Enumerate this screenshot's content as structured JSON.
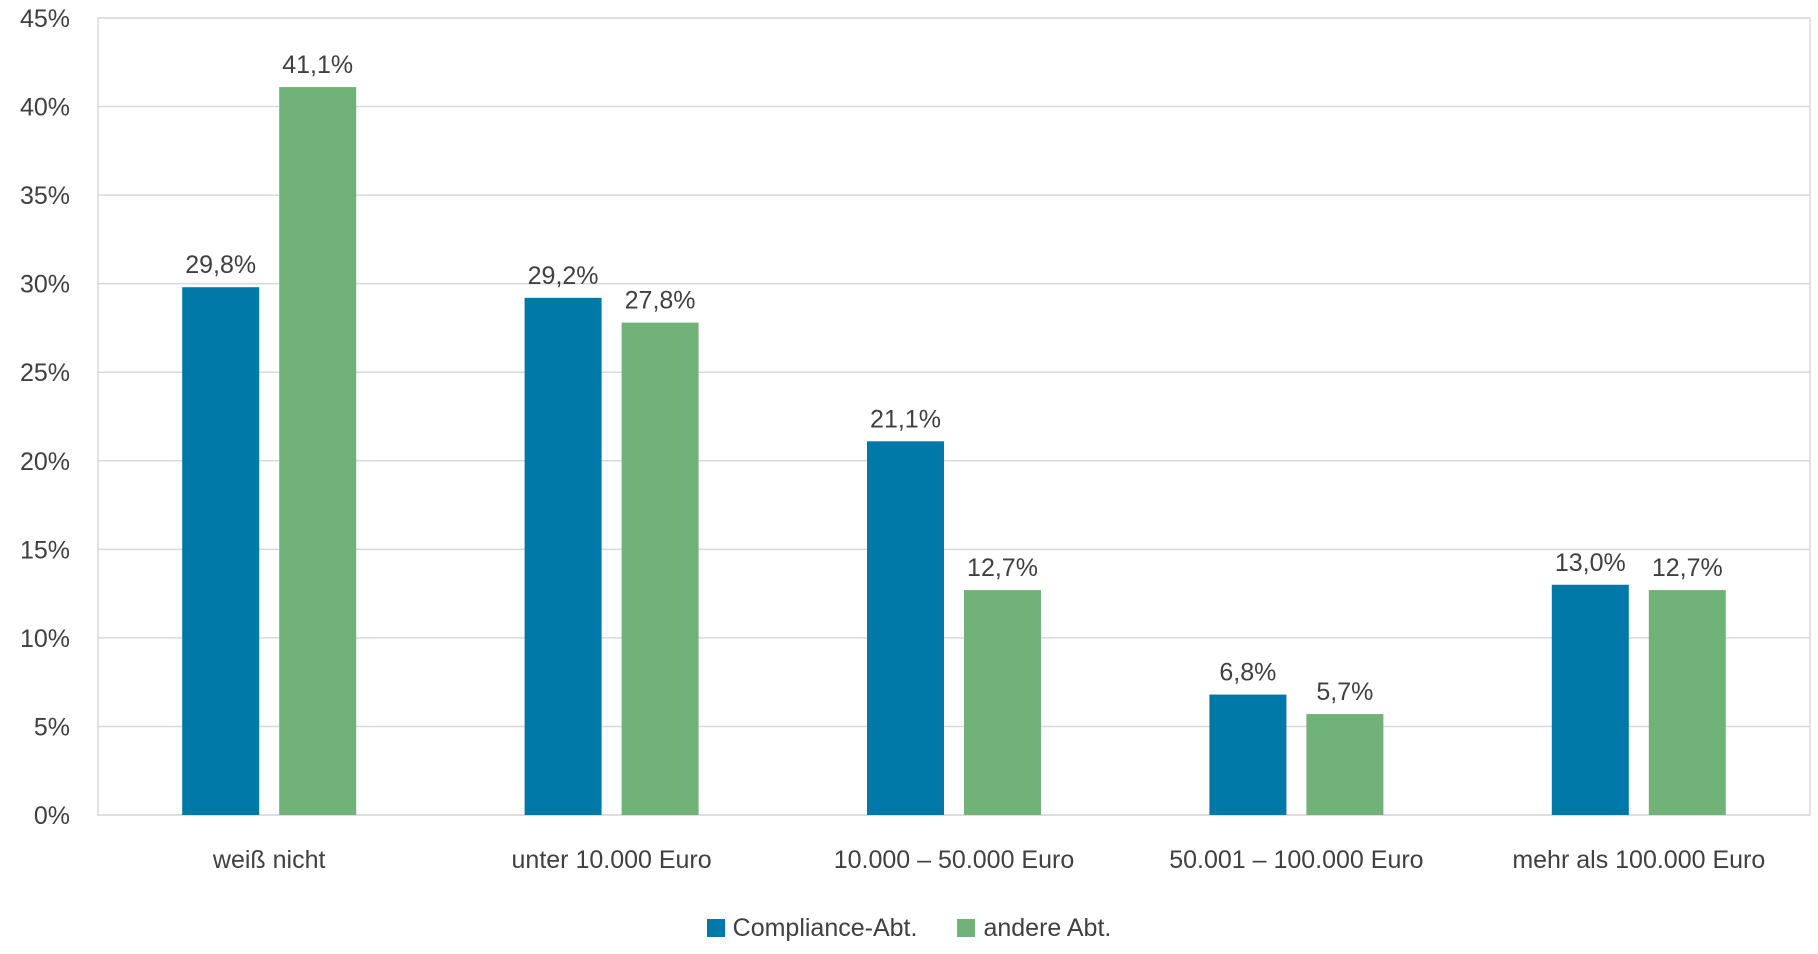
{
  "chart_data": {
    "type": "bar",
    "categories": [
      "weiß nicht",
      "unter 10.000 Euro",
      "10.000 – 50.000 Euro",
      "50.001 – 100.000 Euro",
      "mehr als 100.000 Euro"
    ],
    "series": [
      {
        "name": "Compliance-Abt.",
        "color": "#0078A8",
        "values": [
          29.8,
          29.2,
          21.1,
          6.8,
          13.0
        ],
        "labels": [
          "29,8%",
          "29,2%",
          "21,1%",
          "6,8%",
          "13,0%"
        ]
      },
      {
        "name": "andere Abt.",
        "color": "#70B277",
        "values": [
          41.1,
          27.8,
          12.7,
          5.7,
          12.7
        ],
        "labels": [
          "41,1%",
          "27,8%",
          "12,7%",
          "5,7%",
          "12,7%"
        ]
      }
    ],
    "ylim": [
      0,
      45
    ],
    "yticks": [
      0,
      5,
      10,
      15,
      20,
      25,
      30,
      35,
      40,
      45
    ],
    "ytick_labels": [
      "0%",
      "5%",
      "10%",
      "15%",
      "20%",
      "25%",
      "30%",
      "35%",
      "40%",
      "45%"
    ],
    "grid": true,
    "legend_position": "bottom",
    "gridline_color": "#D9D9D9",
    "title": "",
    "xlabel": "",
    "ylabel": ""
  }
}
